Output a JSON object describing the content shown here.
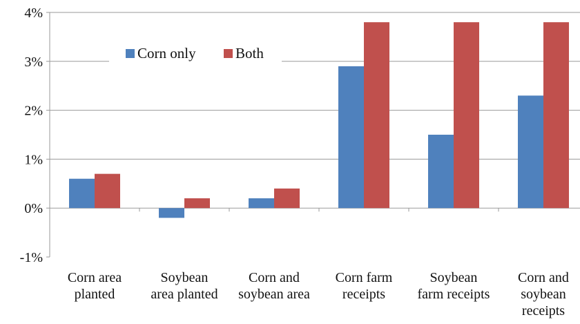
{
  "chart_data": {
    "type": "bar",
    "categories": [
      [
        "Corn area",
        "planted"
      ],
      [
        "Soybean",
        "area planted"
      ],
      [
        "Corn and",
        "soybean area"
      ],
      [
        "Corn farm",
        "receipts"
      ],
      [
        "Soybean",
        "farm receipts"
      ],
      [
        "Corn and",
        "soybean",
        "receipts"
      ]
    ],
    "series": [
      {
        "name": "Corn only",
        "color": "#4f81bd",
        "values": [
          0.6,
          -0.2,
          0.2,
          2.9,
          1.5,
          2.3
        ]
      },
      {
        "name": "Both",
        "color": "#c0504d",
        "values": [
          0.7,
          0.2,
          0.4,
          3.8,
          3.8,
          3.8
        ]
      }
    ],
    "y_ticks": [
      {
        "value": 4,
        "label": "4%"
      },
      {
        "value": 3,
        "label": "3%"
      },
      {
        "value": 2,
        "label": "2%"
      },
      {
        "value": 1,
        "label": "1%"
      },
      {
        "value": 0,
        "label": "0%"
      },
      {
        "value": -1,
        "label": "-1%"
      }
    ],
    "ylim": [
      -1,
      4
    ],
    "grid": true,
    "legend_position": "top-left"
  }
}
